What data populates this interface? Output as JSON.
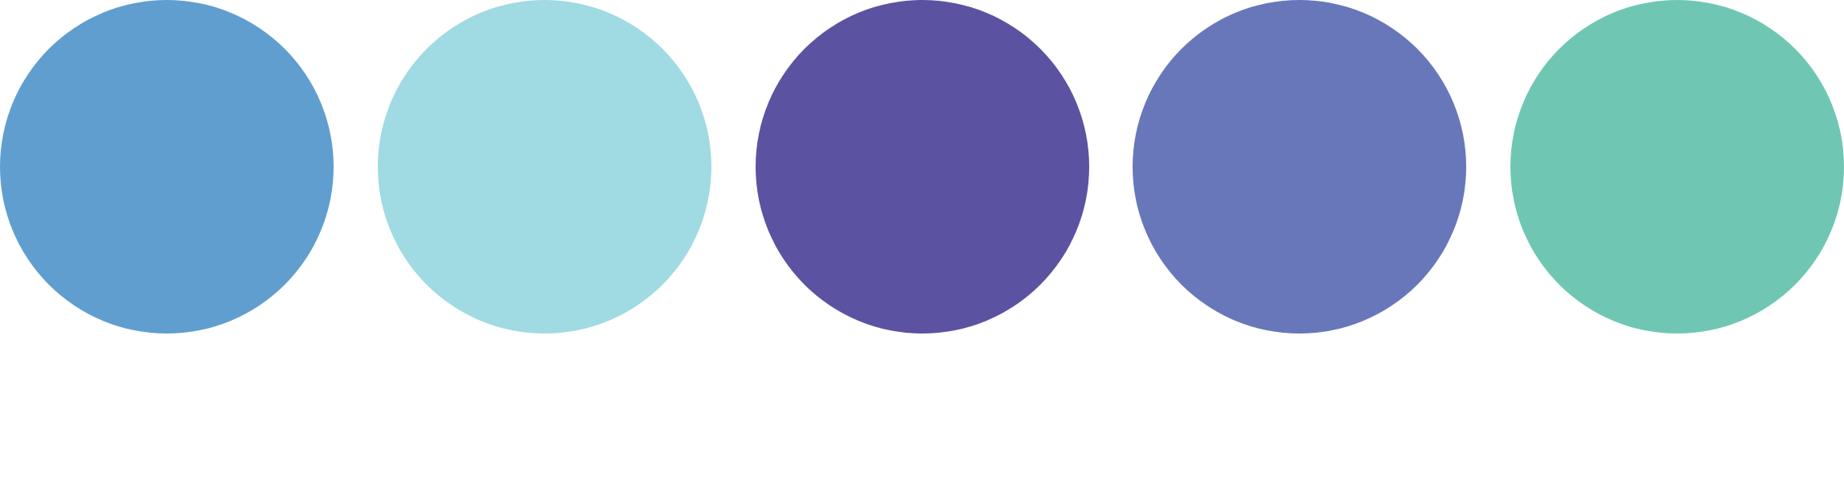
{
  "palette": {
    "swatches": [
      {
        "name": "swatch-1",
        "color": "#5f9ecf"
      },
      {
        "name": "swatch-2",
        "color": "#a0dae3"
      },
      {
        "name": "swatch-3",
        "color": "#5c52a2"
      },
      {
        "name": "swatch-4",
        "color": "#6877b9"
      },
      {
        "name": "swatch-5",
        "color": "#6fc7b3"
      }
    ]
  }
}
